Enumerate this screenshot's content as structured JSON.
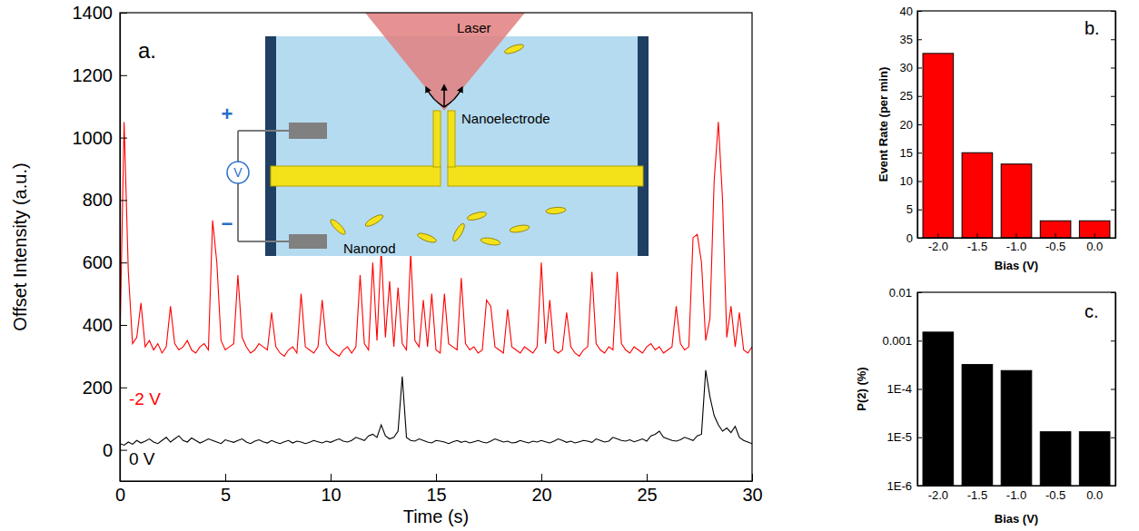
{
  "chart_data": [
    {
      "type": "line",
      "title": "a.",
      "x_label": "Time (s)",
      "y_label": "Offset Intensity (a.u.)",
      "annotations": [
        "Laser",
        "Nanoelectrode",
        "Nanorod",
        "+",
        "−",
        "V"
      ],
      "xlim": [
        0,
        30
      ],
      "xticks": [
        0,
        5,
        10,
        15,
        20,
        25,
        30
      ],
      "ylim": [
        -100,
        1400
      ],
      "yticks": [
        0,
        200,
        400,
        600,
        800,
        1000,
        1200,
        1400
      ],
      "x": [
        0,
        0.2,
        0.4,
        0.6,
        0.8,
        1,
        1.2,
        1.4,
        1.6,
        1.8,
        2,
        2.2,
        2.4,
        2.6,
        2.8,
        3,
        3.2,
        3.4,
        3.6,
        3.8,
        4,
        4.2,
        4.4,
        4.6,
        4.8,
        5,
        5.2,
        5.4,
        5.6,
        5.8,
        6,
        6.2,
        6.4,
        6.6,
        6.8,
        7,
        7.2,
        7.4,
        7.6,
        7.8,
        8,
        8.2,
        8.4,
        8.6,
        8.8,
        9,
        9.2,
        9.4,
        9.6,
        9.8,
        10,
        10.2,
        10.4,
        10.6,
        10.8,
        11,
        11.2,
        11.4,
        11.6,
        11.8,
        12,
        12.2,
        12.4,
        12.6,
        12.8,
        13,
        13.2,
        13.4,
        13.6,
        13.8,
        14,
        14.2,
        14.4,
        14.6,
        14.8,
        15,
        15.2,
        15.4,
        15.6,
        15.8,
        16,
        16.2,
        16.4,
        16.6,
        16.8,
        17,
        17.2,
        17.4,
        17.6,
        17.8,
        18,
        18.2,
        18.4,
        18.6,
        18.8,
        19,
        19.2,
        19.4,
        19.6,
        19.8,
        20,
        20.2,
        20.4,
        20.6,
        20.8,
        21,
        21.2,
        21.4,
        21.6,
        21.8,
        22,
        22.2,
        22.4,
        22.6,
        22.8,
        23,
        23.2,
        23.4,
        23.6,
        23.8,
        24,
        24.2,
        24.4,
        24.6,
        24.8,
        25,
        25.2,
        25.4,
        25.6,
        25.8,
        26,
        26.2,
        26.4,
        26.6,
        26.8,
        27,
        27.2,
        27.4,
        27.6,
        27.8,
        28,
        28.2,
        28.4,
        28.6,
        28.8,
        29,
        29.2,
        29.4,
        29.6,
        29.8,
        30
      ],
      "series": [
        {
          "name": "-2 V",
          "color": "#ff0000",
          "values": [
            340,
            1050,
            570,
            340,
            360,
            470,
            330,
            350,
            320,
            340,
            310,
            330,
            460,
            340,
            320,
            330,
            350,
            320,
            310,
            330,
            340,
            320,
            735,
            600,
            350,
            320,
            330,
            340,
            560,
            360,
            330,
            310,
            320,
            340,
            330,
            320,
            440,
            330,
            310,
            300,
            320,
            330,
            310,
            500,
            330,
            320,
            310,
            330,
            480,
            340,
            320,
            310,
            300,
            320,
            330,
            310,
            330,
            560,
            340,
            320,
            600,
            350,
            640,
            360,
            540,
            330,
            520,
            340,
            320,
            630,
            350,
            330,
            480,
            330,
            500,
            320,
            310,
            500,
            340,
            330,
            320,
            550,
            340,
            320,
            330,
            310,
            320,
            480,
            460,
            330,
            320,
            310,
            450,
            330,
            320,
            310,
            330,
            320,
            310,
            330,
            600,
            340,
            480,
            320,
            310,
            320,
            440,
            330,
            310,
            300,
            320,
            330,
            570,
            340,
            320,
            310,
            330,
            320,
            570,
            340,
            320,
            310,
            330,
            320,
            310,
            330,
            340,
            320,
            330,
            310,
            320,
            330,
            460,
            340,
            320,
            330,
            680,
            690,
            600,
            350,
            420,
            860,
            1050,
            800,
            360,
            460,
            330,
            440,
            320,
            310,
            330
          ]
        },
        {
          "name": "0 V",
          "color": "#000000",
          "values": [
            20,
            15,
            25,
            18,
            30,
            22,
            28,
            35,
            25,
            20,
            30,
            40,
            25,
            35,
            45,
            30,
            25,
            38,
            30,
            22,
            28,
            35,
            30,
            25,
            20,
            32,
            28,
            24,
            30,
            35,
            25,
            20,
            28,
            32,
            26,
            22,
            30,
            24,
            20,
            26,
            30,
            22,
            28,
            25,
            20,
            24,
            30,
            26,
            22,
            28,
            24,
            30,
            35,
            28,
            25,
            30,
            40,
            35,
            30,
            45,
            50,
            40,
            80,
            45,
            35,
            40,
            60,
            235,
            40,
            30,
            28,
            35,
            30,
            25,
            22,
            30,
            28,
            25,
            20,
            26,
            30,
            24,
            28,
            22,
            26,
            30,
            25,
            22,
            28,
            35,
            30,
            25,
            28,
            22,
            24,
            30,
            26,
            22,
            28,
            25,
            30,
            26,
            22,
            28,
            35,
            30,
            24,
            28,
            22,
            26,
            30,
            28,
            24,
            35,
            30,
            25,
            28,
            40,
            35,
            30,
            28,
            32,
            26,
            30,
            35,
            28,
            45,
            50,
            60,
            40,
            35,
            30,
            28,
            32,
            40,
            35,
            30,
            45,
            50,
            255,
            170,
            110,
            80,
            60,
            70,
            55,
            75,
            40,
            30,
            25,
            20
          ]
        }
      ]
    },
    {
      "type": "bar",
      "title": "b.",
      "x_label": "Bias (V)",
      "y_label": "Event Rate (per min)",
      "categories": [
        "-2.0",
        "-1.5",
        "-1.0",
        "-0.5",
        "0.0"
      ],
      "values": [
        32.5,
        15,
        13,
        3,
        3
      ],
      "color": "#ff0000",
      "ylim": [
        0,
        40
      ],
      "yticks": [
        0,
        5,
        10,
        15,
        20,
        25,
        30,
        35,
        40
      ]
    },
    {
      "type": "bar",
      "title": "c.",
      "x_label": "Bias (V)",
      "y_label": "P(2) (%)",
      "categories": [
        "-2.0",
        "-1.5",
        "-1.0",
        "-0.5",
        "0.0"
      ],
      "values": [
        0.0015,
        0.00032,
        0.00024,
        1.3e-05,
        1.3e-05
      ],
      "color": "#000000",
      "log": "y",
      "ylim": [
        1e-06,
        0.01
      ],
      "yticks": [
        {
          "value": 1e-06,
          "label": "1E-6"
        },
        {
          "value": 1e-05,
          "label": "1E-5"
        },
        {
          "value": 0.0001,
          "label": "1E-4"
        },
        0.001,
        0.01
      ]
    }
  ]
}
